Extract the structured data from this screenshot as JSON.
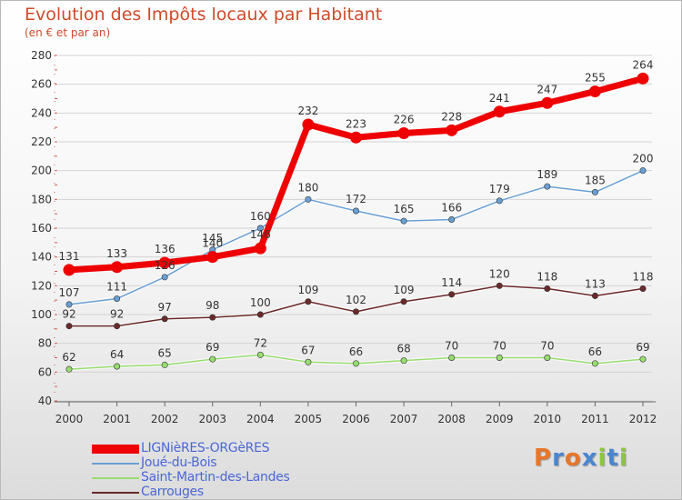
{
  "header": {
    "title": "Evolution des Impôts locaux par Habitant",
    "subtitle": "(en € et par an)"
  },
  "chart_data": {
    "type": "line",
    "title": "Evolution des Impôts locaux par Habitant",
    "subtitle": "(en € et par an)",
    "xlabel": "",
    "ylabel": "",
    "x": [
      "2000",
      "2001",
      "2002",
      "2003",
      "2004",
      "2005",
      "2006",
      "2007",
      "2008",
      "2009",
      "2010",
      "2011",
      "2012"
    ],
    "ylim": [
      40,
      280
    ],
    "yticks": [
      40,
      60,
      80,
      100,
      120,
      140,
      160,
      180,
      200,
      220,
      240,
      260,
      280
    ],
    "grid": "horizontal",
    "legend_position": "bottom-left",
    "series": [
      {
        "name": "LIGNièRES-ORGèRES",
        "color": "#ee0000",
        "line_width": 7,
        "values": [
          131,
          133,
          136,
          140,
          146,
          232,
          223,
          226,
          228,
          241,
          247,
          255,
          264
        ]
      },
      {
        "name": "Joué-du-Bois",
        "color": "#6a9fd4",
        "line_width": 1.5,
        "values": [
          107,
          111,
          126,
          145,
          160,
          180,
          172,
          165,
          166,
          179,
          189,
          185,
          200
        ]
      },
      {
        "name": "Saint-Martin-des-Landes",
        "color": "#98dd70",
        "line_width": 1.5,
        "values": [
          62,
          64,
          65,
          69,
          72,
          67,
          66,
          68,
          70,
          70,
          70,
          66,
          69
        ]
      },
      {
        "name": "Carrouges",
        "color": "#6b2a2a",
        "line_width": 1.5,
        "values": [
          92,
          92,
          97,
          98,
          100,
          109,
          102,
          109,
          114,
          120,
          118,
          113,
          118
        ]
      }
    ]
  },
  "logo": {
    "letters": [
      "P",
      "r",
      "o",
      "x",
      "i",
      "t",
      "i"
    ],
    "colors": [
      "#e8762a",
      "#4a86cf",
      "#e8762a",
      "#4a86cf",
      "#8cc63f",
      "#4a86cf",
      "#8cc63f"
    ]
  }
}
